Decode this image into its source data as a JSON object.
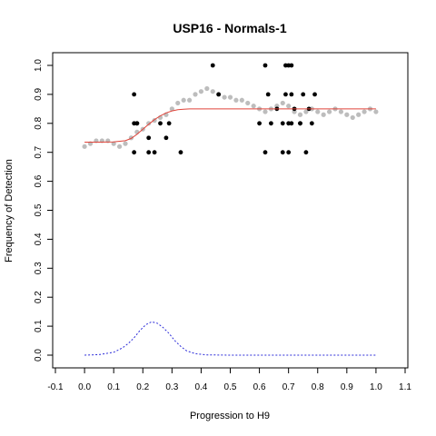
{
  "chart_data": {
    "type": "scatter",
    "title": "USP16 - Normals-1",
    "xlabel": "Progression to H9",
    "ylabel": "Frequency of Detection",
    "xlim": [
      -0.1,
      1.1
    ],
    "ylim": [
      0.0,
      1.0
    ],
    "x_ticks": [
      -0.1,
      0.0,
      0.1,
      0.2,
      0.3,
      0.4,
      0.5,
      0.6,
      0.7,
      0.8,
      0.9,
      1.0,
      1.1
    ],
    "x_tick_labels": [
      "-0.1",
      "0.0",
      "0.1",
      "0.2",
      "0.3",
      "0.4",
      "0.5",
      "0.6",
      "0.7",
      "0.8",
      "0.9",
      "1.0",
      "1.1"
    ],
    "y_ticks": [
      0.0,
      0.1,
      0.2,
      0.3,
      0.4,
      0.5,
      0.6,
      0.7,
      0.8,
      0.9,
      1.0
    ],
    "y_tick_labels": [
      "0.0",
      "0.1",
      "0.2",
      "0.3",
      "0.4",
      "0.5",
      "0.6",
      "0.7",
      "0.8",
      "0.9",
      "1.0"
    ],
    "grid": false,
    "colors": {
      "points": "#000000",
      "smoothed": "#bdbdbd",
      "fit": "#e0443a",
      "density": "#2b2bd9",
      "frame": "#000000"
    },
    "series": [
      {
        "kind": "points",
        "x": [
          0.17,
          0.17,
          0.17,
          0.18,
          0.18,
          0.22,
          0.22,
          0.24,
          0.26,
          0.28,
          0.29,
          0.33,
          0.44,
          0.46,
          0.6,
          0.62,
          0.62,
          0.63,
          0.64,
          0.66,
          0.68,
          0.68,
          0.69,
          0.69,
          0.7,
          0.7,
          0.7,
          0.71,
          0.71,
          0.71,
          0.72,
          0.74,
          0.74,
          0.75,
          0.76,
          0.77,
          0.78,
          0.79
        ],
        "y": [
          0.9,
          0.8,
          0.7,
          0.8,
          0.8,
          0.75,
          0.7,
          0.7,
          0.8,
          0.75,
          0.8,
          0.7,
          1.0,
          0.9,
          0.8,
          0.7,
          1.0,
          0.9,
          0.8,
          0.85,
          0.8,
          0.7,
          1.0,
          0.9,
          1.0,
          0.8,
          0.7,
          1.0,
          0.9,
          0.8,
          0.85,
          0.8,
          0.8,
          0.9,
          0.7,
          0.85,
          0.8,
          0.9
        ]
      },
      {
        "kind": "smoothed",
        "x": [
          0.0,
          0.02,
          0.04,
          0.06,
          0.08,
          0.1,
          0.12,
          0.14,
          0.16,
          0.18,
          0.2,
          0.22,
          0.24,
          0.26,
          0.28,
          0.3,
          0.32,
          0.34,
          0.36,
          0.38,
          0.4,
          0.42,
          0.44,
          0.46,
          0.48,
          0.5,
          0.52,
          0.54,
          0.56,
          0.58,
          0.6,
          0.62,
          0.64,
          0.66,
          0.68,
          0.7,
          0.72,
          0.74,
          0.76,
          0.78,
          0.8,
          0.82,
          0.84,
          0.86,
          0.88,
          0.9,
          0.92,
          0.94,
          0.96,
          0.98,
          1.0
        ],
        "y": [
          0.72,
          0.73,
          0.74,
          0.74,
          0.74,
          0.73,
          0.72,
          0.73,
          0.75,
          0.77,
          0.78,
          0.8,
          0.81,
          0.82,
          0.83,
          0.85,
          0.87,
          0.88,
          0.88,
          0.9,
          0.91,
          0.92,
          0.91,
          0.9,
          0.89,
          0.89,
          0.88,
          0.88,
          0.87,
          0.86,
          0.85,
          0.84,
          0.85,
          0.86,
          0.87,
          0.86,
          0.84,
          0.83,
          0.84,
          0.85,
          0.84,
          0.83,
          0.84,
          0.85,
          0.84,
          0.83,
          0.82,
          0.83,
          0.84,
          0.85,
          0.84
        ]
      },
      {
        "kind": "fit",
        "x": [
          0.0,
          0.05,
          0.1,
          0.14,
          0.16,
          0.18,
          0.2,
          0.22,
          0.24,
          0.26,
          0.28,
          0.3,
          0.32,
          0.34,
          0.36,
          0.4,
          0.5,
          0.6,
          0.7,
          0.8,
          0.9,
          1.0
        ],
        "y": [
          0.735,
          0.735,
          0.736,
          0.74,
          0.748,
          0.762,
          0.78,
          0.797,
          0.813,
          0.826,
          0.836,
          0.843,
          0.847,
          0.849,
          0.85,
          0.85,
          0.85,
          0.85,
          0.85,
          0.85,
          0.85,
          0.85
        ]
      },
      {
        "kind": "density",
        "x": [
          0.0,
          0.05,
          0.1,
          0.13,
          0.15,
          0.17,
          0.19,
          0.21,
          0.23,
          0.25,
          0.27,
          0.29,
          0.31,
          0.33,
          0.35,
          0.38,
          0.42,
          0.5,
          0.6,
          0.7,
          0.8,
          0.9,
          1.0
        ],
        "y": [
          0.0,
          0.002,
          0.01,
          0.025,
          0.04,
          0.06,
          0.085,
          0.105,
          0.115,
          0.11,
          0.095,
          0.075,
          0.05,
          0.03,
          0.015,
          0.005,
          0.001,
          0.0,
          0.0,
          0.0,
          0.0,
          0.0,
          0.0
        ]
      }
    ]
  }
}
